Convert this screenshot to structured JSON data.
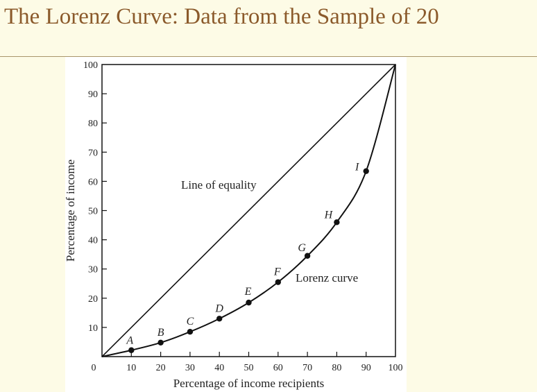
{
  "slide": {
    "title": "The Lorenz Curve: Data from the Sample of 20"
  },
  "chart_data": {
    "type": "line",
    "title": "",
    "xlabel": "Percentage of income recipients",
    "ylabel": "Percentage of income",
    "xlim": [
      0,
      100
    ],
    "ylim": [
      0,
      100
    ],
    "xticks": [
      10,
      20,
      30,
      40,
      50,
      60,
      70,
      80,
      90,
      100
    ],
    "yticks": [
      10,
      20,
      30,
      40,
      50,
      60,
      70,
      80,
      90,
      100
    ],
    "origin_label": "0",
    "grid": false,
    "series": [
      {
        "name": "Line of equality",
        "x": [
          0,
          100
        ],
        "y": [
          0,
          100
        ]
      },
      {
        "name": "Lorenz curve",
        "x": [
          0,
          10,
          20,
          30,
          40,
          50,
          60,
          70,
          80,
          90,
          100
        ],
        "y": [
          0,
          2.2,
          4.8,
          8.5,
          13,
          18.5,
          25.5,
          34.5,
          46,
          63.5,
          100
        ]
      }
    ],
    "points": [
      {
        "label": "A",
        "x": 10,
        "y": 2.2
      },
      {
        "label": "B",
        "x": 20,
        "y": 4.8
      },
      {
        "label": "C",
        "x": 30,
        "y": 8.5
      },
      {
        "label": "D",
        "x": 40,
        "y": 13
      },
      {
        "label": "E",
        "x": 50,
        "y": 18.5
      },
      {
        "label": "F",
        "x": 60,
        "y": 25.5
      },
      {
        "label": "G",
        "x": 70,
        "y": 34.5
      },
      {
        "label": "H",
        "x": 80,
        "y": 46
      },
      {
        "label": "I",
        "x": 90,
        "y": 63.5
      }
    ],
    "annotations": {
      "equality_label": "Line of equality",
      "lorenz_label": "Lorenz curve"
    }
  }
}
